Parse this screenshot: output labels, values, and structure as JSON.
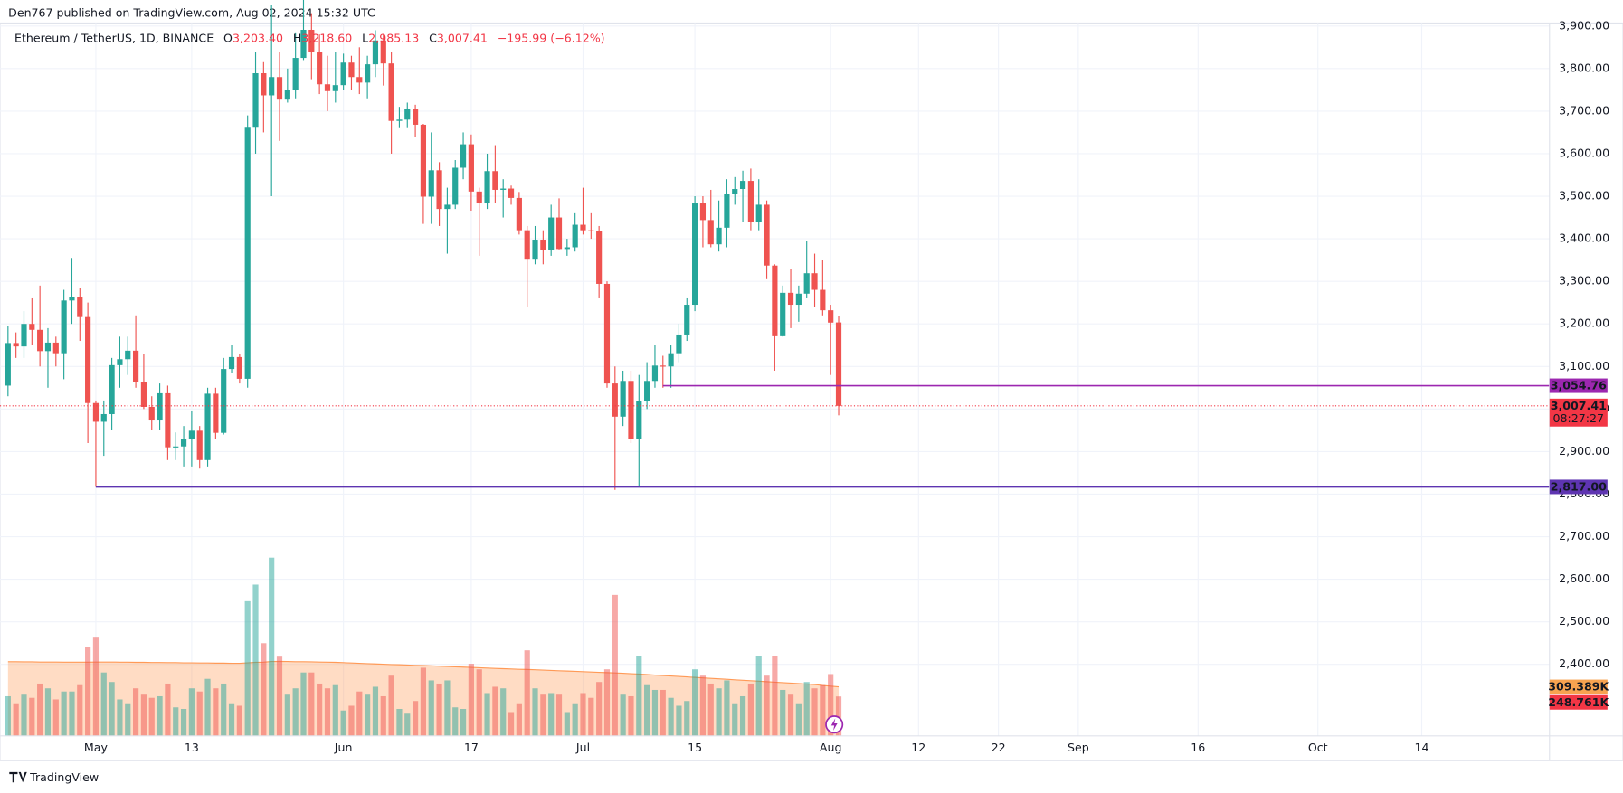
{
  "header": {
    "published": "Den767 published on TradingView.com, Aug 02, 2024 15:32 UTC",
    "symbol": "Ethereum / TetherUS, 1D, BINANCE",
    "ohlc": [
      {
        "key": "O",
        "value": "3,203.40"
      },
      {
        "key": "H",
        "value": "3,218.60"
      },
      {
        "key": "L",
        "value": "2,985.13"
      },
      {
        "key": "C",
        "value": "3,007.41"
      }
    ],
    "change": "−195.99 (−6.12%)"
  },
  "chart_data": {
    "type": "candlestick",
    "open": [
      3055,
      3155,
      3147,
      3200,
      3186,
      3136,
      3156,
      3131,
      3255,
      3263,
      3216,
      3014,
      2970,
      2988,
      3103,
      3117,
      3137,
      3064,
      3005,
      2973,
      3037,
      2910,
      2912,
      2930,
      2949,
      2880,
      3036,
      2944,
      3094,
      3122,
      3071,
      3661,
      3789,
      3737,
      3780,
      3727,
      3749,
      3825,
      3891,
      3840,
      3763,
      3747,
      3761,
      3814,
      3780,
      3767,
      3810,
      3866,
      3812,
      3677,
      3680,
      3706,
      3668,
      3499,
      3561,
      3470,
      3480,
      3567,
      3622,
      3511,
      3483,
      3559,
      3515,
      3518,
      3496,
      3420,
      3353,
      3398,
      3373,
      3450,
      3376,
      3380,
      3433,
      3420,
      3418,
      3294,
      3060,
      2982,
      3066,
      2930,
      3018,
      3066,
      3102,
      3100,
      3131,
      3175,
      3245,
      3483,
      3444,
      3387,
      3426,
      3505,
      3517,
      3536,
      3440,
      3480,
      3337,
      3171,
      3273,
      3245,
      3271,
      3319,
      3280,
      3232,
      3203.4
    ],
    "high": [
      3196,
      3180,
      3230,
      3260,
      3290,
      3190,
      3170,
      3280,
      3355,
      3285,
      3250,
      3020,
      3020,
      3120,
      3170,
      3170,
      3220,
      3130,
      3030,
      3060,
      3055,
      2945,
      2960,
      2995,
      2960,
      3050,
      3050,
      3120,
      3150,
      3130,
      3690,
      3840,
      3815,
      3950,
      3840,
      3800,
      3885,
      3975,
      3930,
      3880,
      3830,
      3840,
      3835,
      3830,
      3850,
      3830,
      3890,
      3880,
      3840,
      3710,
      3720,
      3715,
      3670,
      3650,
      3580,
      3520,
      3585,
      3650,
      3645,
      3520,
      3600,
      3620,
      3540,
      3525,
      3510,
      3430,
      3430,
      3420,
      3480,
      3495,
      3400,
      3460,
      3520,
      3460,
      3430,
      3300,
      3100,
      3090,
      3090,
      3080,
      3110,
      3150,
      3125,
      3150,
      3200,
      3260,
      3500,
      3500,
      3515,
      3490,
      3540,
      3545,
      3560,
      3565,
      3540,
      3490,
      3340,
      3290,
      3330,
      3290,
      3395,
      3365,
      3350,
      3245,
      3218.6
    ],
    "low": [
      3030,
      3120,
      3120,
      3150,
      3100,
      3050,
      3100,
      3070,
      3200,
      3160,
      2920,
      2817,
      2890,
      2950,
      3050,
      3080,
      3050,
      3000,
      2950,
      2950,
      2880,
      2880,
      2865,
      2865,
      2860,
      2865,
      2930,
      2940,
      3085,
      3060,
      3050,
      3600,
      3650,
      3500,
      3630,
      3720,
      3730,
      3820,
      3775,
      3740,
      3700,
      3720,
      3750,
      3750,
      3740,
      3730,
      3780,
      3760,
      3600,
      3660,
      3660,
      3640,
      3435,
      3435,
      3430,
      3365,
      3470,
      3540,
      3466,
      3360,
      3470,
      3485,
      3450,
      3480,
      3410,
      3240,
      3340,
      3340,
      3360,
      3375,
      3360,
      3370,
      3410,
      3400,
      3260,
      3050,
      2810,
      2960,
      2920,
      2820,
      3000,
      3050,
      3050,
      3050,
      3110,
      3160,
      3230,
      3380,
      3380,
      3370,
      3380,
      3480,
      3440,
      3420,
      3420,
      3305,
      3090,
      3170,
      3190,
      3205,
      3260,
      3240,
      3220,
      3080,
      2985.13
    ],
    "close": [
      3155,
      3147,
      3200,
      3186,
      3136,
      3156,
      3131,
      3255,
      3263,
      3216,
      3014,
      2970,
      2988,
      3103,
      3117,
      3137,
      3064,
      3005,
      2973,
      3037,
      2910,
      2912,
      2930,
      2949,
      2880,
      3036,
      2944,
      3094,
      3122,
      3071,
      3661,
      3789,
      3737,
      3780,
      3727,
      3749,
      3825,
      3891,
      3840,
      3763,
      3747,
      3761,
      3814,
      3780,
      3767,
      3810,
      3866,
      3812,
      3677,
      3680,
      3706,
      3668,
      3499,
      3561,
      3470,
      3480,
      3567,
      3622,
      3511,
      3483,
      3559,
      3515,
      3518,
      3496,
      3420,
      3353,
      3398,
      3373,
      3450,
      3376,
      3380,
      3433,
      3420,
      3418,
      3294,
      3060,
      2982,
      3066,
      2930,
      3018,
      3066,
      3102,
      3100,
      3131,
      3175,
      3245,
      3483,
      3444,
      3387,
      3426,
      3505,
      3517,
      3536,
      3440,
      3480,
      3337,
      3171,
      3273,
      3245,
      3271,
      3319,
      3280,
      3232,
      3203,
      3007.41
    ],
    "volume": [
      250,
      200,
      260,
      240,
      330,
      300,
      230,
      280,
      280,
      320,
      560,
      620,
      400,
      340,
      230,
      200,
      300,
      260,
      240,
      250,
      330,
      180,
      170,
      300,
      280,
      360,
      300,
      330,
      200,
      190,
      850,
      955,
      585,
      1125,
      500,
      260,
      300,
      400,
      400,
      330,
      300,
      320,
      160,
      190,
      280,
      260,
      310,
      250,
      380,
      170,
      140,
      220,
      430,
      350,
      330,
      350,
      180,
      170,
      455,
      420,
      270,
      310,
      300,
      150,
      200,
      540,
      300,
      260,
      270,
      260,
      150,
      200,
      270,
      240,
      340,
      420,
      890,
      260,
      250,
      505,
      320,
      290,
      290,
      240,
      190,
      220,
      420,
      380,
      330,
      300,
      350,
      200,
      250,
      330,
      505,
      380,
      505,
      290,
      260,
      200,
      340,
      300,
      320,
      390,
      248.761
    ],
    "volume_ma": [
      468,
      468,
      467,
      467,
      466,
      466,
      466,
      465,
      465,
      465,
      465,
      466,
      466,
      466,
      465,
      465,
      464,
      464,
      463,
      463,
      462,
      462,
      461,
      461,
      460,
      460,
      459,
      459,
      458,
      458,
      461,
      464,
      465,
      469,
      470,
      469,
      468,
      468,
      467,
      466,
      465,
      464,
      462,
      460,
      458,
      456,
      454,
      452,
      450,
      449,
      447,
      445,
      444,
      442,
      440,
      438,
      436,
      434,
      432,
      430,
      428,
      426,
      424,
      422,
      420,
      419,
      417,
      415,
      413,
      411,
      409,
      407,
      405,
      403,
      401,
      399,
      397,
      395,
      392,
      390,
      387,
      384,
      381,
      378,
      375,
      372,
      369,
      366,
      363,
      360,
      357,
      354,
      351,
      348,
      345,
      342,
      339,
      336,
      333,
      330,
      327,
      324,
      318,
      314,
      309.389
    ],
    "up_color": "#26a69a",
    "down_color": "#ef5350",
    "ma_color": "#ff9a57",
    "xlim": [
      -1,
      193
    ],
    "ylim": [
      2232,
      3907
    ],
    "volume_lim": [
      0,
      4500
    ],
    "grid": true,
    "yticks": [
      {
        "value": 3900,
        "label": "3,900.00"
      },
      {
        "value": 3800,
        "label": "3,800.00"
      },
      {
        "value": 3700,
        "label": "3,700.00"
      },
      {
        "value": 3600,
        "label": "3,600.00"
      },
      {
        "value": 3500,
        "label": "3,500.00"
      },
      {
        "value": 3400,
        "label": "3,400.00"
      },
      {
        "value": 3300,
        "label": "3,300.00"
      },
      {
        "value": 3200,
        "label": "3,200.00"
      },
      {
        "value": 3100,
        "label": "3,100.00"
      },
      {
        "value": 3000,
        "label": "3,000.00"
      },
      {
        "value": 2900,
        "label": "2,900.00"
      },
      {
        "value": 2800,
        "label": "2,800.00"
      },
      {
        "value": 2700,
        "label": "2,700.00"
      },
      {
        "value": 2600,
        "label": "2,600.00"
      },
      {
        "value": 2500,
        "label": "2,500.00"
      },
      {
        "value": 2400,
        "label": "2,400.00"
      }
    ],
    "xticks": [
      {
        "value": 11,
        "label": "May"
      },
      {
        "value": 23,
        "label": "13"
      },
      {
        "value": 42,
        "label": "Jun"
      },
      {
        "value": 58,
        "label": "17"
      },
      {
        "value": 72,
        "label": "Jul"
      },
      {
        "value": 86,
        "label": "15"
      },
      {
        "value": 103,
        "label": "Aug"
      },
      {
        "value": 114,
        "label": "12"
      },
      {
        "value": 124,
        "label": "22"
      },
      {
        "value": 134,
        "label": "Sep"
      },
      {
        "value": 149,
        "label": "16"
      },
      {
        "value": 164,
        "label": "Oct"
      },
      {
        "value": 177,
        "label": "14"
      }
    ],
    "levels": [
      {
        "value": 3054.76,
        "label": "3,054.76",
        "color": "#9c27b0",
        "from": 82
      },
      {
        "value": 2817,
        "label": "2,817.00",
        "color": "#5e35b1",
        "from": 11
      }
    ],
    "last_price": {
      "value": 3007.41,
      "label": "3,007.41",
      "countdown": "08:27:27",
      "color": "#f23645"
    },
    "volume_labels": [
      {
        "value": 309.389,
        "label": "309.389K",
        "color": "#f7a350"
      },
      {
        "value": 248.761,
        "label": "248.761K",
        "color": "#f23645"
      }
    ]
  },
  "footer": {
    "brand": "TradingView"
  }
}
